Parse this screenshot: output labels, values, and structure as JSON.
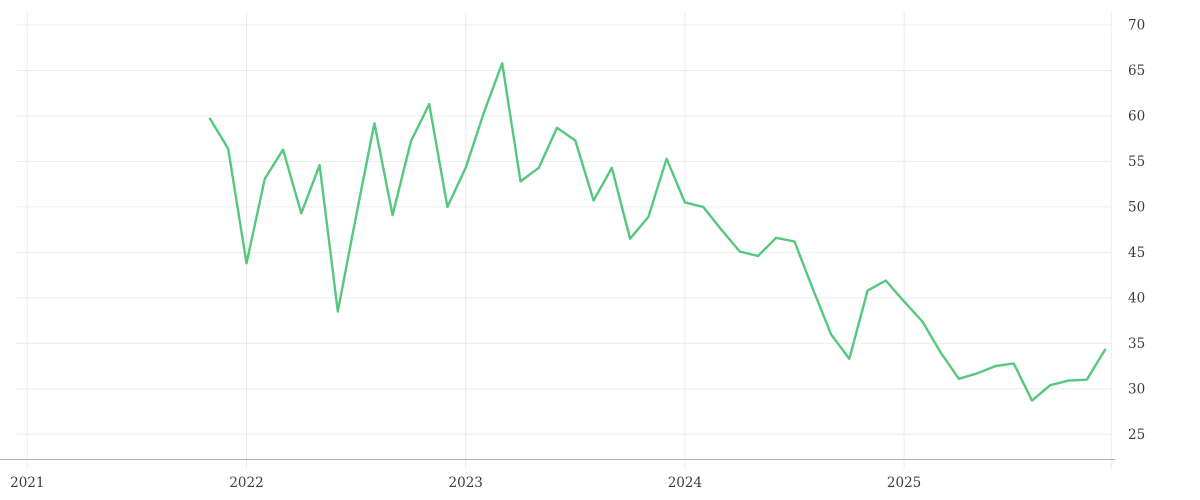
{
  "chart_data": {
    "type": "line",
    "title": "",
    "xlabel": "",
    "ylabel": "",
    "series_name": "price-series",
    "line_color": "#55c87e",
    "background_color": "#ffffff",
    "gridline_color": "#ececec",
    "axis_line_color": "#b3b3b3",
    "tick_label_color": "#3c3c3c",
    "grid": true,
    "legend": false,
    "y_axis_side": "right",
    "ylim": [
      25,
      70
    ],
    "y_ticks": [
      70,
      65,
      60,
      55,
      50,
      45,
      40,
      35,
      30,
      25
    ],
    "x_ticks": [
      "2021",
      "2022",
      "2023",
      "2024",
      "2025"
    ],
    "x": [
      "2021-11",
      "2021-12",
      "2022-01",
      "2022-02",
      "2022-03",
      "2022-04",
      "2022-05",
      "2022-06",
      "2022-07",
      "2022-08",
      "2022-09",
      "2022-10",
      "2022-11",
      "2022-12",
      "2023-01",
      "2023-02",
      "2023-03",
      "2023-04",
      "2023-05",
      "2023-06",
      "2023-07",
      "2023-08",
      "2023-09",
      "2023-10",
      "2023-11",
      "2023-12",
      "2024-01",
      "2024-02",
      "2024-03",
      "2024-04",
      "2024-05",
      "2024-06",
      "2024-07",
      "2024-08",
      "2024-09",
      "2024-10",
      "2024-11",
      "2024-12",
      "2025-01",
      "2025-02",
      "2025-03",
      "2025-04",
      "2025-05",
      "2025-06",
      "2025-07",
      "2025-08",
      "2025-09",
      "2025-10",
      "2025-11",
      "2025-12"
    ],
    "values": [
      59.7,
      56.4,
      43.8,
      53.1,
      56.3,
      49.3,
      54.6,
      38.5,
      49.0,
      59.2,
      49.1,
      57.2,
      61.3,
      50.0,
      54.3,
      60.4,
      65.8,
      52.8,
      54.3,
      58.7,
      57.3,
      50.7,
      54.3,
      46.5,
      48.9,
      55.3,
      50.5,
      50.0,
      47.5,
      45.1,
      44.6,
      46.6,
      46.2,
      41.0,
      36.0,
      33.3,
      40.8,
      41.9,
      39.6,
      37.4,
      34.0,
      31.1,
      31.7,
      32.5,
      32.8,
      28.7,
      30.4,
      30.9,
      31.0,
      34.3
    ]
  }
}
